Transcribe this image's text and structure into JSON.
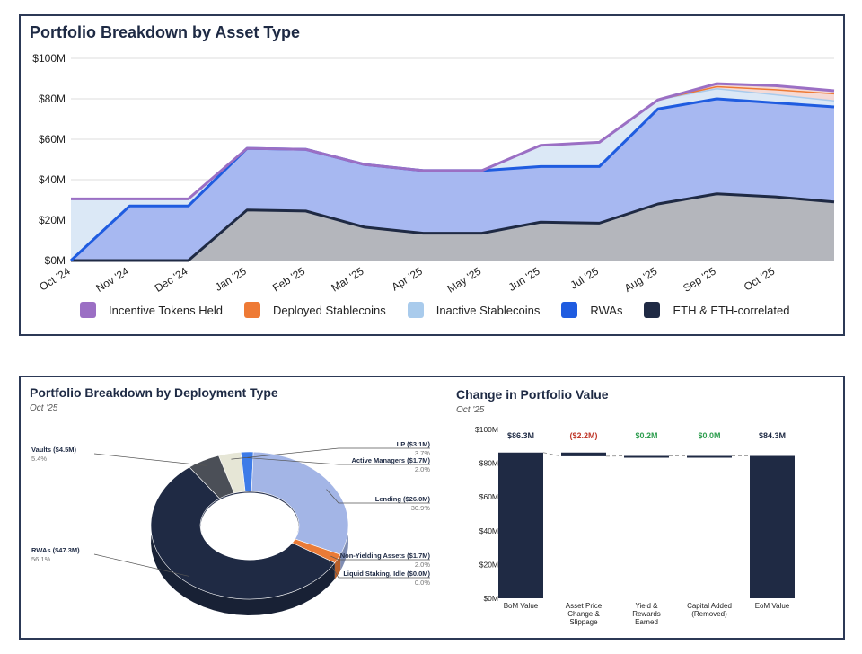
{
  "colors": {
    "incentive": "#9b6fc4",
    "deployed": "#ee7a35",
    "inactive": "#a9cbec",
    "rwa": "#1f5ce0",
    "eth": "#1f2a44",
    "rwa_fill": "#a7b8f1",
    "eth_fill": "#b4b6bc",
    "inactive_fill": "#dbe8f6",
    "incentive_fill": "#f4d6d0"
  },
  "top": {
    "title": "Portfolio Breakdown by Asset Type",
    "legend": [
      {
        "label": "Incentive Tokens Held",
        "color": "#9b6fc4"
      },
      {
        "label": "Deployed Stablecoins",
        "color": "#ee7a35"
      },
      {
        "label": "Inactive Stablecoins",
        "color": "#a9cbec"
      },
      {
        "label": "RWAs",
        "color": "#1f5ce0"
      },
      {
        "label": "ETH & ETH-correlated",
        "color": "#1f2a44"
      }
    ]
  },
  "bottom_left": {
    "title": "Portfolio Breakdown by Deployment Type",
    "subtitle": "Oct '25"
  },
  "bottom_right": {
    "title": "Change in Portfolio Value",
    "subtitle": "Oct '25"
  },
  "chart_data": [
    {
      "type": "area",
      "stacked": true,
      "title": "Portfolio Breakdown by Asset Type",
      "x": [
        "Oct '24",
        "Nov '24",
        "Dec '24",
        "Jan '25",
        "Feb '25",
        "Mar '25",
        "Apr '25",
        "May '25",
        "Jun '25",
        "Jul '25",
        "Aug '25",
        "Sep '25",
        "Oct '25",
        ""
      ],
      "ylim": [
        0,
        100
      ],
      "yticks": [
        "$0M",
        "$20M",
        "$40M",
        "$60M",
        "$80M",
        "$100M"
      ],
      "grid": true,
      "legend_position": "bottom",
      "series": [
        {
          "name": "ETH & ETH-correlated",
          "values": [
            0,
            0,
            0,
            25,
            24.5,
            16.5,
            13.5,
            13.5,
            19,
            18.5,
            28,
            33,
            31.5,
            29
          ]
        },
        {
          "name": "RWAs",
          "values": [
            0,
            27,
            27,
            30.5,
            30.5,
            31,
            31,
            31,
            27.5,
            28,
            47,
            47,
            46.5,
            47
          ]
        },
        {
          "name": "Inactive Stablecoins",
          "values": [
            30.5,
            3.5,
            3.5,
            0,
            0,
            0,
            0,
            0,
            10.5,
            12,
            4.5,
            5,
            4,
            3
          ]
        },
        {
          "name": "Deployed Stablecoins",
          "values": [
            0,
            0,
            0,
            0,
            0,
            0,
            0,
            0,
            0,
            0,
            0,
            1,
            2.5,
            3.5
          ]
        },
        {
          "name": "Incentive Tokens Held",
          "values": [
            0,
            0,
            0,
            0,
            0,
            0,
            0,
            0,
            0,
            0,
            0,
            1.5,
            2,
            1.5
          ]
        }
      ]
    },
    {
      "type": "pie",
      "title": "Portfolio Breakdown by Deployment Type",
      "subtitle": "Oct '25",
      "slices": [
        {
          "label": "LP ($3.1M)",
          "value": 3.1,
          "pct": "3.7%",
          "color": "#e6e6d6"
        },
        {
          "label": "Active Managers ($1.7M)",
          "value": 1.7,
          "pct": "2.0%",
          "color": "#3d7be8"
        },
        {
          "label": "Lending ($26.0M)",
          "value": 26.0,
          "pct": "30.9%",
          "color": "#a3b5e6"
        },
        {
          "label": "Non-Yielding Assets ($1.7M)",
          "value": 1.7,
          "pct": "2.0%",
          "color": "#ea7b37"
        },
        {
          "label": "Liquid Staking, Idle ($0.0M)",
          "value": 0.0,
          "pct": "0.0%",
          "color": "#7a8798"
        },
        {
          "label": "RWAs ($47.3M)",
          "value": 47.3,
          "pct": "56.1%",
          "color": "#1f2a44"
        },
        {
          "label": "Vaults ($4.5M)",
          "value": 4.5,
          "pct": "5.4%",
          "color": "#4b4f57"
        }
      ]
    },
    {
      "type": "bar",
      "title": "Change in Portfolio Value",
      "subtitle": "Oct '25",
      "waterfall": true,
      "categories": [
        "BoM Value",
        "Asset Price Change & Slippage",
        "Yield & Rewards Earned",
        "Capital Added (Removed)",
        "EoM Value"
      ],
      "values": [
        86.3,
        -2.2,
        0.2,
        0.0,
        84.3
      ],
      "data_labels": [
        "$86.3M",
        "($2.2M)",
        "$0.2M",
        "$0.0M",
        "$84.3M"
      ],
      "label_colors": [
        "#1e2a44",
        "#c0392b",
        "#2e9e4f",
        "#2e9e4f",
        "#1e2a44"
      ],
      "ylim": [
        0,
        100
      ],
      "yticks": [
        "$0M",
        "$20M",
        "$40M",
        "$60M",
        "$80M",
        "$100M"
      ]
    }
  ]
}
